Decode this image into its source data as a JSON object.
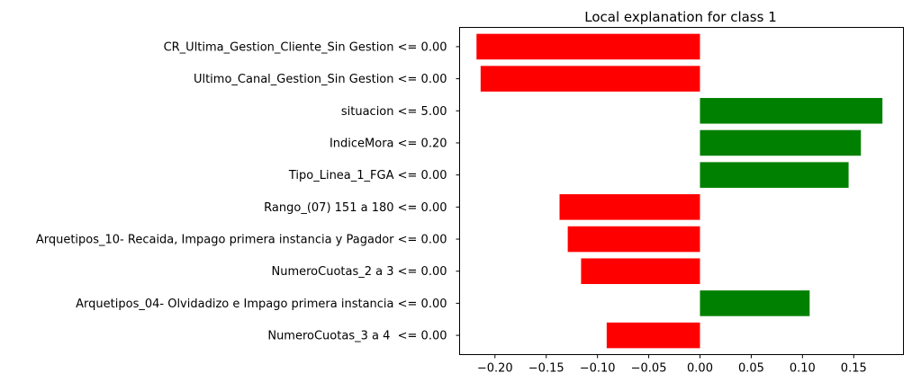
{
  "chart_data": {
    "type": "bar",
    "orientation": "horizontal",
    "title": "Local explanation for class 1",
    "xlabel": "",
    "ylabel": "",
    "categories": [
      "CR_Ultima_Gestion_Cliente_Sin Gestion <= 0.00",
      "Ultimo_Canal_Gestion_Sin Gestion <= 0.00",
      "situacion <= 5.00",
      "IndiceMora <= 0.20",
      "Tipo_Linea_1_FGA <= 0.00",
      "Rango_(07) 151 a 180 <= 0.00",
      "Arquetipos_10- Recaida, Impago primera instancia y Pagador <= 0.00",
      "NumeroCuotas_2 a 3 <= 0.00",
      "Arquetipos_04- Olvidadizo e Impago primera instancia <= 0.00",
      "NumeroCuotas_3 a 4  <= 0.00"
    ],
    "values": [
      -0.218,
      -0.214,
      0.178,
      0.157,
      0.145,
      -0.137,
      -0.129,
      -0.116,
      0.107,
      -0.091
    ],
    "xlim": [
      -0.2345,
      0.1985
    ],
    "xticks": [
      -0.2,
      -0.15,
      -0.1,
      -0.05,
      0.0,
      0.05,
      0.1,
      0.15
    ],
    "xtick_labels": [
      "−0.20",
      "−0.15",
      "−0.10",
      "−0.05",
      "0.00",
      "0.05",
      "0.10",
      "0.15"
    ],
    "colors": {
      "positive": "#008000",
      "negative": "#ff0000"
    },
    "grid": false,
    "legend": "none"
  }
}
